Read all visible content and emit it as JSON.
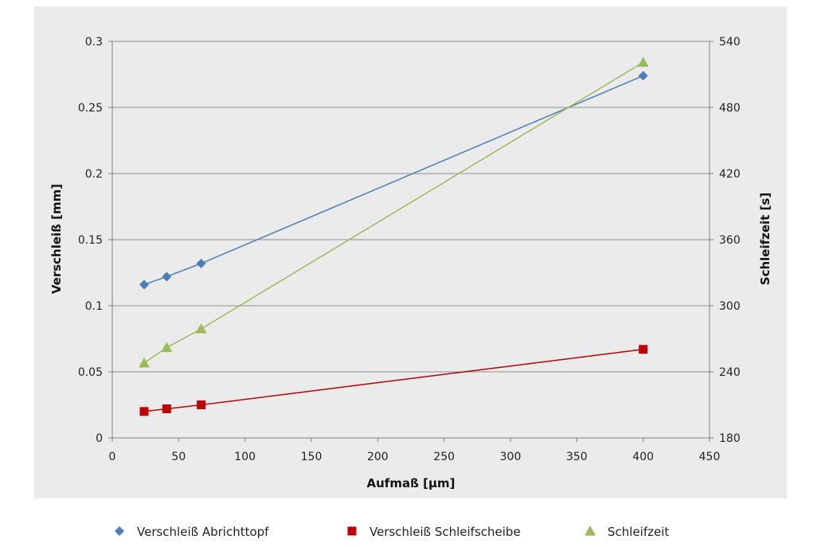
{
  "chart_data": {
    "type": "line",
    "xlabel": "Aufmaß [µm]",
    "ylabel": "Verschleiß [mm]",
    "y2label": "Schleifzeit [s]",
    "xlim": [
      0,
      450
    ],
    "ylim": [
      0,
      0.3
    ],
    "y2lim": [
      180,
      540
    ],
    "xticks": [
      "0",
      "50",
      "100",
      "150",
      "200",
      "250",
      "300",
      "350",
      "400",
      "450"
    ],
    "xtick_values": [
      0,
      50,
      100,
      150,
      200,
      250,
      300,
      350,
      400,
      450
    ],
    "yticks": [
      "0",
      "0.05",
      "0.1",
      "0.15",
      "0.2",
      "0.25",
      "0.3"
    ],
    "ytick_values": [
      0,
      0.05,
      0.1,
      0.15,
      0.2,
      0.25,
      0.3
    ],
    "y2ticks": [
      "180",
      "240",
      "300",
      "360",
      "420",
      "480",
      "540"
    ],
    "y2tick_values": [
      180,
      240,
      300,
      360,
      420,
      480,
      540
    ],
    "grid": true,
    "legend_position": "bottom",
    "background": "#ebebeb",
    "series": [
      {
        "name": "Verschleiß Abrichttopf",
        "axis": "left",
        "marker": "diamond",
        "color": "#4a7ebb",
        "x": [
          24,
          41,
          67,
          400
        ],
        "y": [
          0.116,
          0.122,
          0.132,
          0.274
        ]
      },
      {
        "name": "Verschleiß Schleifscheibe",
        "axis": "left",
        "marker": "square",
        "color": "#c00000",
        "x": [
          24,
          41,
          67,
          400
        ],
        "y": [
          0.02,
          0.022,
          0.025,
          0.067
        ]
      },
      {
        "name": "Schleifzeit",
        "axis": "right",
        "marker": "triangle",
        "color": "#9bbb59",
        "x": [
          24,
          41,
          67,
          400
        ],
        "y": [
          248,
          262,
          279,
          521
        ]
      }
    ]
  }
}
